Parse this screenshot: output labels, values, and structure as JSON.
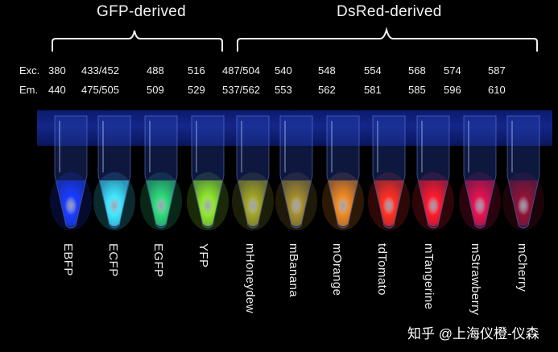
{
  "groups": [
    {
      "label": "GFP-derived"
    },
    {
      "label": "DsRed-derived"
    }
  ],
  "row_labels": {
    "excitation": "Exc.",
    "emission": "Em."
  },
  "proteins": [
    {
      "name": "EBFP",
      "exc": "380",
      "em": "440",
      "color": "#1a3cff"
    },
    {
      "name": "ECFP",
      "exc": "433/452",
      "em": "475/505",
      "color": "#3fe7ff"
    },
    {
      "name": "EGFP",
      "exc": "488",
      "em": "509",
      "color": "#2fd97a"
    },
    {
      "name": "YFP",
      "exc": "516",
      "em": "529",
      "color": "#8fe82a"
    },
    {
      "name": "mHoneydew",
      "exc": "487/504",
      "em": "537/562",
      "color": "#a2a425"
    },
    {
      "name": "mBanana",
      "exc": "540",
      "em": "553",
      "color": "#a48d2c"
    },
    {
      "name": "mOrange",
      "exc": "548",
      "em": "562",
      "color": "#ef8a22"
    },
    {
      "name": "tdTomato",
      "exc": "554",
      "em": "581",
      "color": "#ff2f22"
    },
    {
      "name": "mTangerine",
      "exc": "568",
      "em": "585",
      "color": "#ff1a2e"
    },
    {
      "name": "mStrawberry",
      "exc": "574",
      "em": "596",
      "color": "#e3134f"
    },
    {
      "name": "mCherry",
      "exc": "587",
      "em": "610",
      "color": "#8e1436"
    }
  ],
  "watermark": "知乎 @上海仪橙-仪森"
}
